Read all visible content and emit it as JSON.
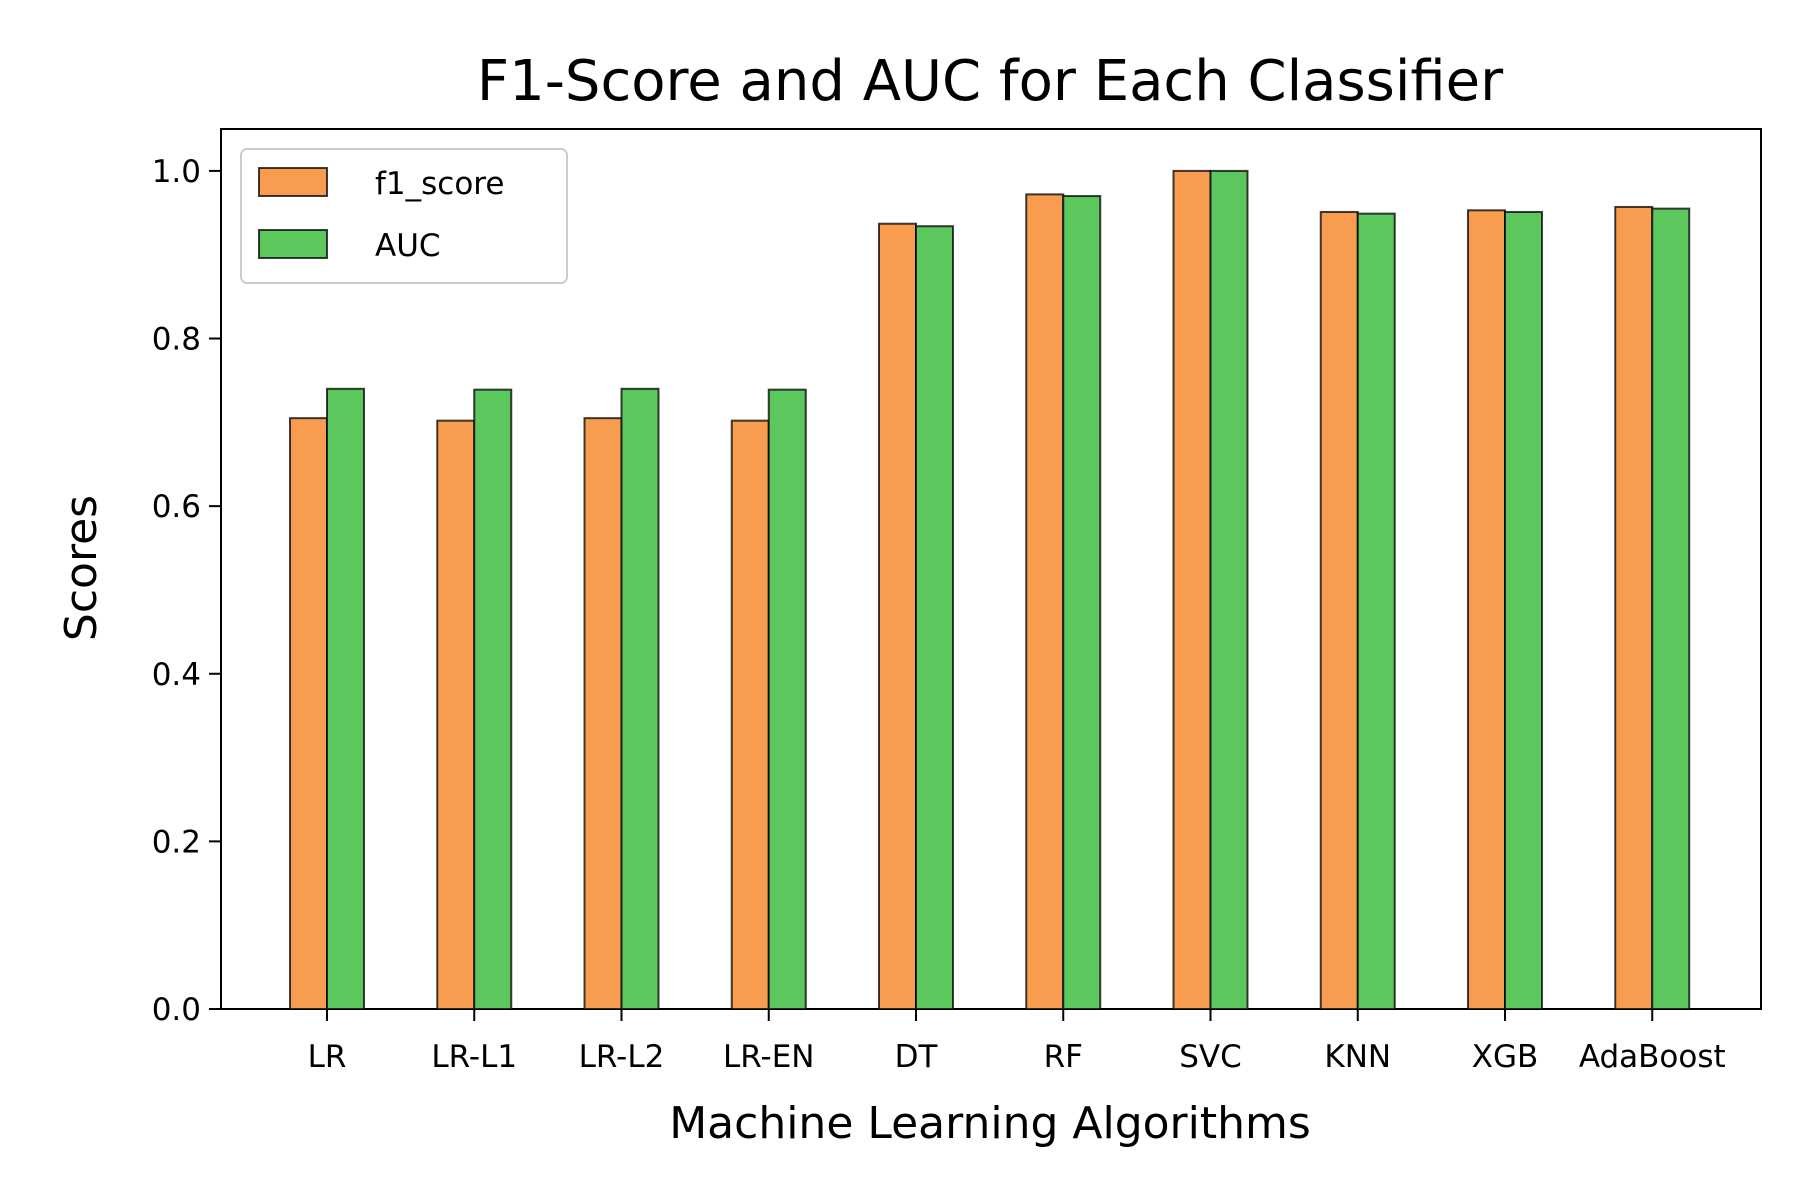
{
  "chart_data": {
    "type": "bar",
    "title": "F1-Score and AUC for Each Classifier",
    "xlabel": "Machine Learning Algorithms",
    "ylabel": "Scores",
    "categories": [
      "LR",
      "LR-L1",
      "LR-L2",
      "LR-EN",
      "DT",
      "RF",
      "SVC",
      "KNN",
      "XGB",
      "AdaBoost"
    ],
    "series": [
      {
        "name": "f1_score",
        "color": "#f89c4f",
        "values": [
          0.705,
          0.702,
          0.705,
          0.702,
          0.937,
          0.972,
          1.0,
          0.951,
          0.953,
          0.957
        ]
      },
      {
        "name": "AUC",
        "color": "#5cc75c",
        "values": [
          0.74,
          0.739,
          0.74,
          0.739,
          0.934,
          0.97,
          1.0,
          0.949,
          0.951,
          0.955
        ]
      }
    ],
    "ylim": [
      0,
      1.05
    ],
    "yticks": [
      "0.0",
      "0.2",
      "0.4",
      "0.6",
      "0.8",
      "1.0"
    ],
    "grid": false,
    "legend_position": "top-left"
  }
}
